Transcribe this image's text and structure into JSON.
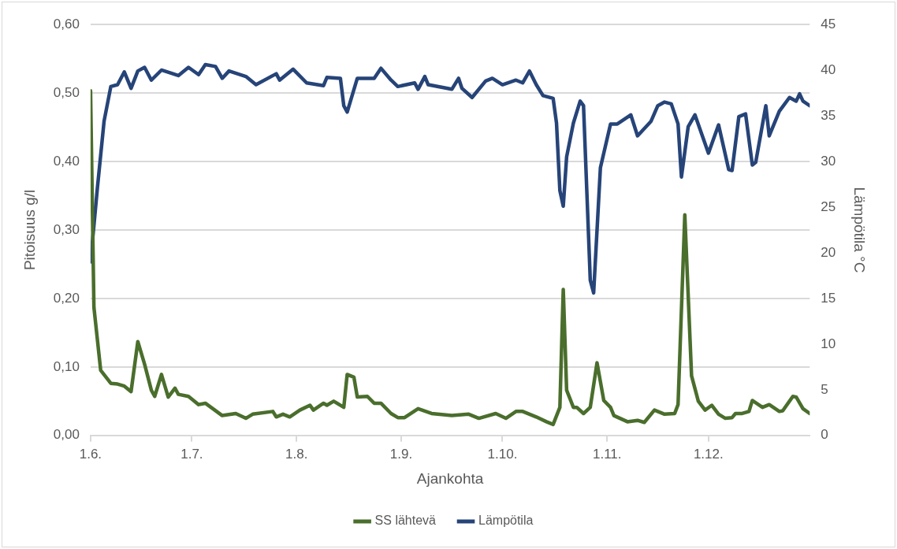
{
  "chart_data": {
    "type": "line",
    "xlabel": "Ajankohta",
    "ylabel": "Pitoisuus g/l",
    "y2label": "Lämpötila °C",
    "xlim": [
      "--06-01",
      "--12-31"
    ],
    "xticks": [
      {
        "value": "--06-01",
        "label": "1.6."
      },
      {
        "value": "--07-01",
        "label": "1.7."
      },
      {
        "value": "--08-01",
        "label": "1.8."
      },
      {
        "value": "--09-01",
        "label": "1.9."
      },
      {
        "value": "--10-01",
        "label": "1.10."
      },
      {
        "value": "--11-01",
        "label": "1.11."
      },
      {
        "value": "--12-01",
        "label": "1.12."
      }
    ],
    "ylim": [
      0,
      0.6
    ],
    "yticks": [
      {
        "value": 0,
        "label": "0,00"
      },
      {
        "value": 0.1,
        "label": "0,10"
      },
      {
        "value": 0.2,
        "label": "0,20"
      },
      {
        "value": 0.3,
        "label": "0,30"
      },
      {
        "value": 0.4,
        "label": "0,40"
      },
      {
        "value": 0.5,
        "label": "0,50"
      },
      {
        "value": 0.6,
        "label": "0,60"
      }
    ],
    "y2lim": [
      0,
      45
    ],
    "y2ticks": [
      0,
      5,
      10,
      15,
      20,
      25,
      30,
      35,
      40,
      45
    ],
    "grid": "y",
    "legend": "bottom",
    "series": [
      {
        "name": "SS lähtevä",
        "color": "#4a6e2c",
        "x": [
          "--06-01",
          "--06-02",
          "--06-04",
          "--06-07",
          "--06-09",
          "--06-11",
          "--06-13",
          "--06-15",
          "--06-17",
          "--06-19",
          "--06-20",
          "--06-22",
          "--06-24",
          "--06-26",
          "--06-27",
          "--06-30",
          "--07-03",
          "--07-05",
          "--07-10",
          "--07-14",
          "--07-17",
          "--07-19",
          "--07-25",
          "--07-26",
          "--07-28",
          "--07-30",
          "--08-02",
          "--08-05",
          "--08-06",
          "--08-09",
          "--08-10",
          "--08-12",
          "--08-15",
          "--08-16",
          "--08-18",
          "--08-19",
          "--08-22",
          "--08-24",
          "--08-26",
          "--08-29",
          "--08-31",
          "--09-02",
          "--09-06",
          "--09-10",
          "--09-16",
          "--09-21",
          "--09-24",
          "--09-29",
          "--10-02",
          "--10-05",
          "--10-07",
          "--10-09",
          "--10-11",
          "--10-14",
          "--10-16",
          "--10-18",
          "--10-19",
          "--10-20",
          "--10-22",
          "--10-23",
          "--10-25",
          "--10-27",
          "--10-29",
          "--10-31",
          "--11-02",
          "--11-03",
          "--11-07",
          "--11-10",
          "--11-12",
          "--11-15",
          "--11-18",
          "--11-21",
          "--11-22",
          "--11-24",
          "--11-26",
          "--11-28",
          "--11-30",
          "--12-02",
          "--12-04",
          "--12-06",
          "--12-08",
          "--12-09",
          "--12-11",
          "--12-13",
          "--12-14",
          "--12-17",
          "--12-19",
          "--12-22",
          "--12-23",
          "--12-26",
          "--12-27",
          "--12-29",
          "--12-31"
        ],
        "values": [
          0.503,
          0.187,
          0.095,
          0.076,
          0.075,
          0.072,
          0.064,
          0.137,
          0.104,
          0.066,
          0.057,
          0.089,
          0.056,
          0.069,
          0.06,
          0.057,
          0.045,
          0.047,
          0.029,
          0.032,
          0.025,
          0.031,
          0.035,
          0.027,
          0.031,
          0.027,
          0.037,
          0.044,
          0.037,
          0.047,
          0.044,
          0.05,
          0.041,
          0.089,
          0.085,
          0.056,
          0.057,
          0.047,
          0.047,
          0.032,
          0.026,
          0.026,
          0.039,
          0.032,
          0.029,
          0.031,
          0.025,
          0.032,
          0.025,
          0.035,
          0.035,
          0.031,
          0.027,
          0.02,
          0.016,
          0.041,
          0.213,
          0.066,
          0.041,
          0.041,
          0.032,
          0.041,
          0.106,
          0.051,
          0.041,
          0.029,
          0.02,
          0.022,
          0.019,
          0.037,
          0.031,
          0.032,
          0.045,
          0.322,
          0.087,
          0.05,
          0.037,
          0.044,
          0.031,
          0.025,
          0.026,
          0.032,
          0.032,
          0.035,
          0.051,
          0.041,
          0.045,
          0.035,
          0.036,
          0.057,
          0.056,
          0.039,
          0.032
        ]
      },
      {
        "name": "Lämpötila",
        "color": "#264478",
        "axis": "y2",
        "x": [
          "--06-01",
          "--06-03",
          "--06-05",
          "--06-07",
          "--06-09",
          "--06-11",
          "--06-13",
          "--06-15",
          "--06-17",
          "--06-19",
          "--06-22",
          "--06-27",
          "--06-30",
          "--07-03",
          "--07-05",
          "--07-08",
          "--07-10",
          "--07-12",
          "--07-17",
          "--07-20",
          "--07-26",
          "--07-27",
          "--07-31",
          "--08-04",
          "--08-09",
          "--08-10",
          "--08-14",
          "--08-15",
          "--08-16",
          "--08-19",
          "--08-24",
          "--08-26",
          "--08-29",
          "--08-31",
          "--09-05",
          "--09-06",
          "--09-08",
          "--09-09",
          "--09-16",
          "--09-18",
          "--09-19",
          "--09-22",
          "--09-26",
          "--09-28",
          "--10-01",
          "--10-05",
          "--10-07",
          "--10-09",
          "--10-11",
          "--10-13",
          "--10-16",
          "--10-17",
          "--10-18",
          "--10-19",
          "--10-20",
          "--10-22",
          "--10-24",
          "--10-25",
          "--10-27",
          "--10-28",
          "--10-30",
          "--11-02",
          "--11-04",
          "--11-08",
          "--11-10",
          "--11-14",
          "--11-16",
          "--11-18",
          "--11-20",
          "--11-22",
          "--11-23",
          "--11-25",
          "--11-27",
          "--12-01",
          "--12-04",
          "--12-07",
          "--12-08",
          "--12-10",
          "--12-12",
          "--12-14",
          "--12-15",
          "--12-18",
          "--12-19",
          "--12-22",
          "--12-23",
          "--12-25",
          "--12-27",
          "--12-28",
          "--12-29",
          "--12-31"
        ],
        "values": [
          19,
          27,
          34.4,
          38.2,
          38.4,
          39.8,
          38,
          39.9,
          40.3,
          38.9,
          40,
          39.4,
          40.3,
          39.5,
          40.6,
          40.4,
          39.1,
          39.9,
          39.3,
          38.4,
          39.6,
          38.9,
          40.1,
          38.6,
          38.3,
          39.2,
          39.1,
          36.1,
          35.4,
          39.1,
          39.1,
          40.2,
          38.9,
          38.2,
          38.6,
          37.9,
          39.3,
          38.4,
          37.9,
          39.1,
          38,
          37,
          38.8,
          39.1,
          38.4,
          38.9,
          38.6,
          39.9,
          38.4,
          37.2,
          36.9,
          34.2,
          26.8,
          25.1,
          30.5,
          34.2,
          36.6,
          36.1,
          17,
          15.6,
          29.3,
          34.1,
          34.1,
          35.1,
          32.8,
          34.4,
          36.1,
          36.5,
          36.3,
          34.1,
          28.3,
          33.8,
          35.1,
          30.9,
          34,
          29.1,
          29,
          34.9,
          35.2,
          29.6,
          29.9,
          36.1,
          32.8,
          35.5,
          36,
          37,
          36.6,
          37.4,
          36.6,
          36.1
        ]
      }
    ]
  }
}
